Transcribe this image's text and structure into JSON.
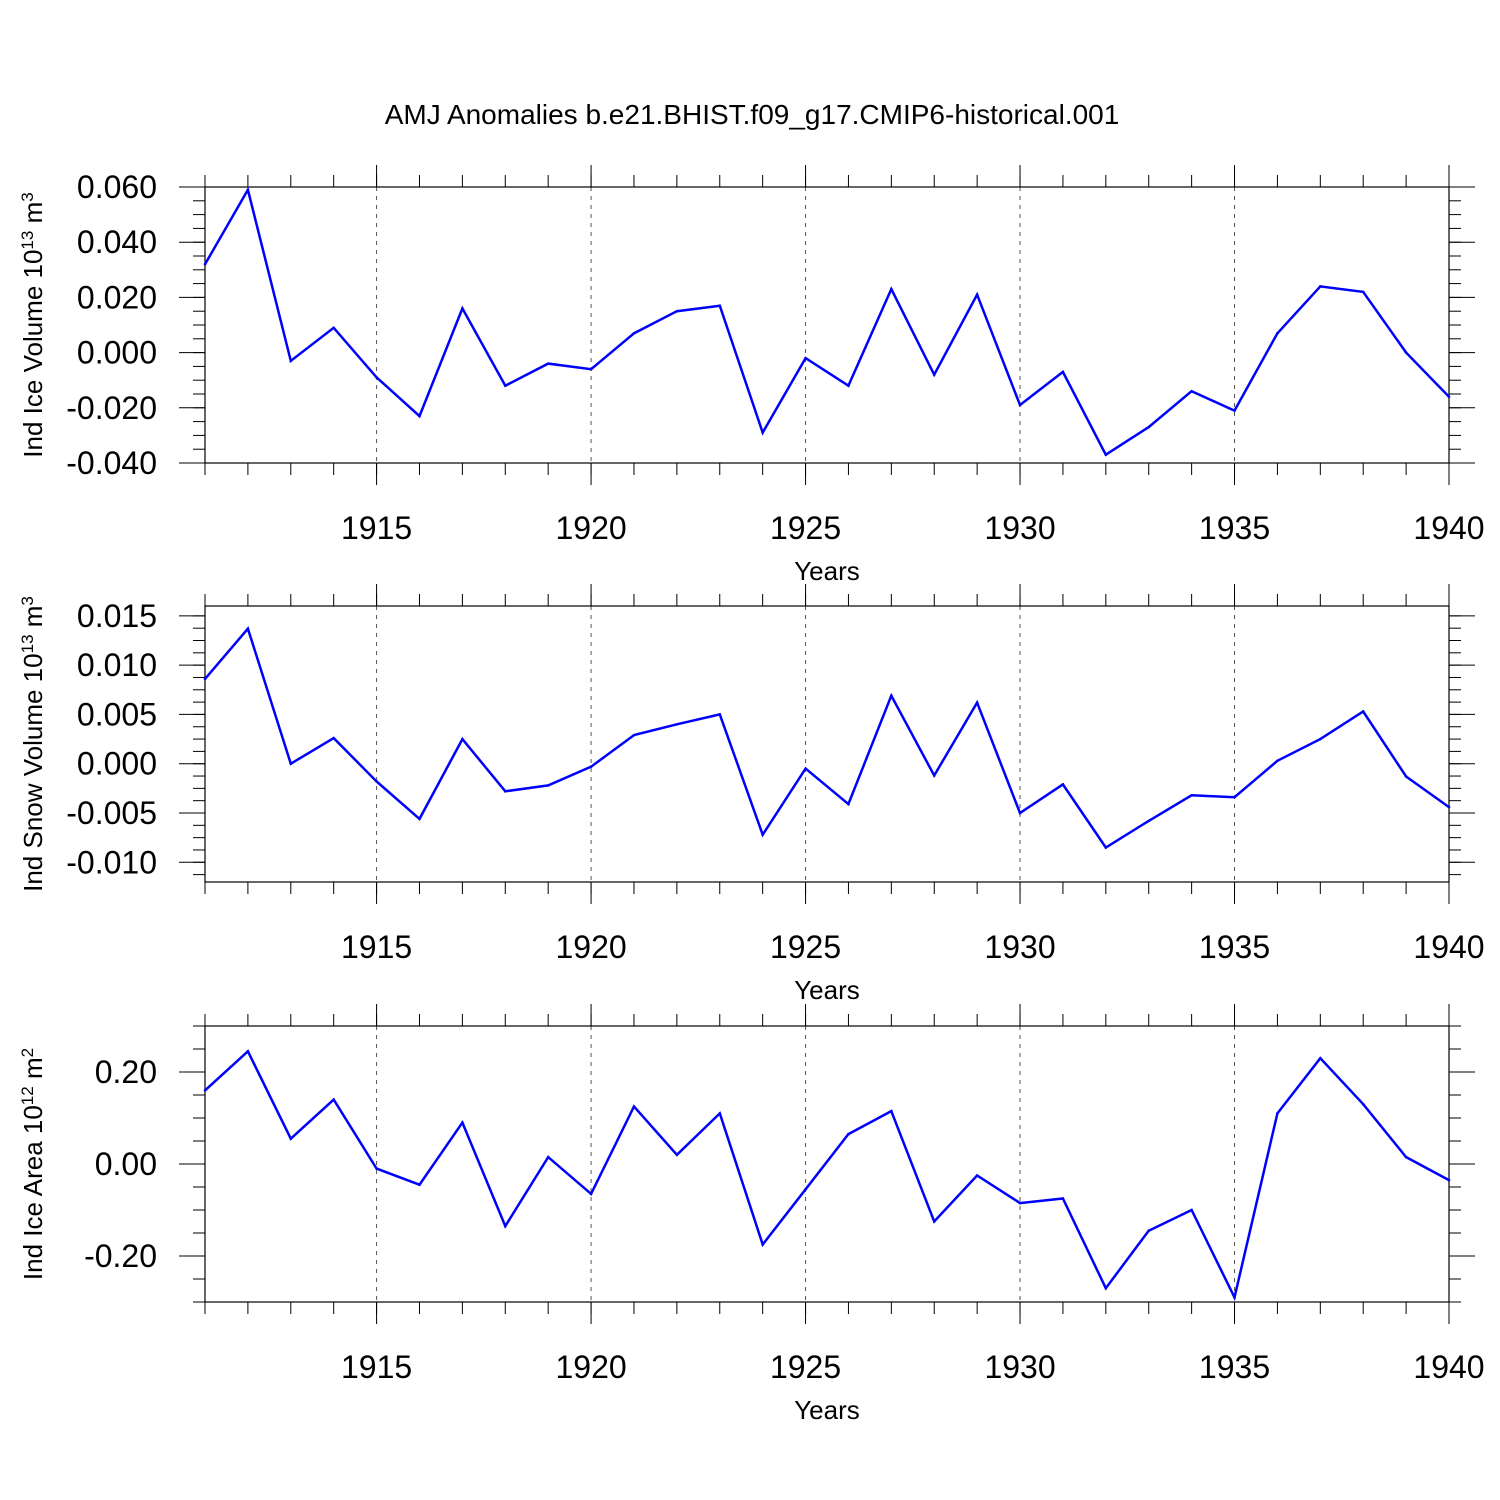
{
  "title": "AMJ Anomalies b.e21.BHIST.f09_g17.CMIP6-historical.001",
  "colors": {
    "line": "#0000ff",
    "axis": "#000000",
    "grid": "#555555"
  },
  "chart_data": [
    {
      "type": "line",
      "id": "ice-volume",
      "ylabel": "Ind Ice Volume 10",
      "ylabel_exp": "13",
      "ylabel_unit": " m",
      "ylabel_unit_exp": "3",
      "xlabel": "Years",
      "xlim": [
        1911,
        1940
      ],
      "ylim": [
        -0.04,
        0.06
      ],
      "yticks": [
        -0.04,
        -0.02,
        0.0,
        0.02,
        0.04,
        0.06
      ],
      "ytick_labels": [
        "-0.040",
        "-0.020",
        "0.000",
        "0.020",
        "0.040",
        "0.060"
      ],
      "xticks": [
        1915,
        1920,
        1925,
        1930,
        1935,
        1940
      ],
      "xtick_labels": [
        "1915",
        "1920",
        "1925",
        "1930",
        "1935",
        "1940"
      ],
      "grid": "x-dotted",
      "x": [
        1911,
        1912,
        1913,
        1914,
        1915,
        1916,
        1917,
        1918,
        1919,
        1920,
        1921,
        1922,
        1923,
        1924,
        1925,
        1926,
        1927,
        1928,
        1929,
        1930,
        1931,
        1932,
        1933,
        1934,
        1935,
        1936,
        1937,
        1938,
        1939,
        1940
      ],
      "values": [
        0.032,
        0.059,
        -0.003,
        0.009,
        -0.009,
        -0.023,
        0.016,
        -0.012,
        -0.004,
        -0.006,
        0.007,
        0.015,
        0.017,
        -0.029,
        -0.002,
        -0.012,
        0.023,
        -0.008,
        0.021,
        -0.019,
        -0.007,
        -0.037,
        -0.027,
        -0.014,
        -0.021,
        0.007,
        0.024,
        0.022,
        0.0,
        -0.016
      ]
    },
    {
      "type": "line",
      "id": "snow-volume",
      "ylabel": "Ind Snow Volume 10",
      "ylabel_exp": "13",
      "ylabel_unit": " m",
      "ylabel_unit_exp": "3",
      "xlabel": "Years",
      "xlim": [
        1911,
        1940
      ],
      "ylim": [
        -0.012,
        0.016
      ],
      "yticks": [
        -0.01,
        -0.005,
        0.0,
        0.005,
        0.01,
        0.015
      ],
      "ytick_labels": [
        "-0.010",
        "-0.005",
        "0.000",
        "0.005",
        "0.010",
        "0.015"
      ],
      "xticks": [
        1915,
        1920,
        1925,
        1930,
        1935,
        1940
      ],
      "xtick_labels": [
        "1915",
        "1920",
        "1925",
        "1930",
        "1935",
        "1940"
      ],
      "grid": "x-dotted",
      "x": [
        1911,
        1912,
        1913,
        1914,
        1915,
        1916,
        1917,
        1918,
        1919,
        1920,
        1921,
        1922,
        1923,
        1924,
        1925,
        1926,
        1927,
        1928,
        1929,
        1930,
        1931,
        1932,
        1933,
        1934,
        1935,
        1936,
        1937,
        1938,
        1939,
        1940
      ],
      "values": [
        0.0086,
        0.0137,
        0.0,
        0.0026,
        -0.0018,
        -0.0056,
        0.0025,
        -0.0028,
        -0.0022,
        -0.0003,
        0.0029,
        0.004,
        0.005,
        -0.0072,
        -0.0005,
        -0.0041,
        0.0069,
        -0.0012,
        0.0062,
        -0.005,
        -0.0021,
        -0.0085,
        -0.0058,
        -0.0032,
        -0.0034,
        0.0003,
        0.0025,
        0.0053,
        -0.0013,
        -0.0044
      ]
    },
    {
      "type": "line",
      "id": "ice-area",
      "ylabel": "Ind Ice Area 10",
      "ylabel_exp": "12",
      "ylabel_unit": " m",
      "ylabel_unit_exp": "2",
      "xlabel": "Years",
      "xlim": [
        1911,
        1940
      ],
      "ylim": [
        -0.3,
        0.3
      ],
      "yticks": [
        -0.2,
        0.0,
        0.2
      ],
      "ytick_labels": [
        "-0.20",
        "0.00",
        "0.20"
      ],
      "xticks": [
        1915,
        1920,
        1925,
        1930,
        1935,
        1940
      ],
      "xtick_labels": [
        "1915",
        "1920",
        "1925",
        "1930",
        "1935",
        "1940"
      ],
      "grid": "x-dotted",
      "x": [
        1911,
        1912,
        1913,
        1914,
        1915,
        1916,
        1917,
        1918,
        1919,
        1920,
        1921,
        1922,
        1923,
        1924,
        1925,
        1926,
        1927,
        1928,
        1929,
        1930,
        1931,
        1932,
        1933,
        1934,
        1935,
        1936,
        1937,
        1938,
        1939,
        1940
      ],
      "values": [
        0.16,
        0.245,
        0.055,
        0.14,
        -0.01,
        -0.045,
        0.09,
        -0.135,
        0.015,
        -0.065,
        0.125,
        0.02,
        0.11,
        -0.175,
        -0.055,
        0.065,
        0.115,
        -0.125,
        -0.025,
        -0.085,
        -0.075,
        -0.27,
        -0.145,
        -0.1,
        -0.29,
        0.11,
        0.23,
        0.13,
        0.015,
        -0.035
      ]
    }
  ]
}
